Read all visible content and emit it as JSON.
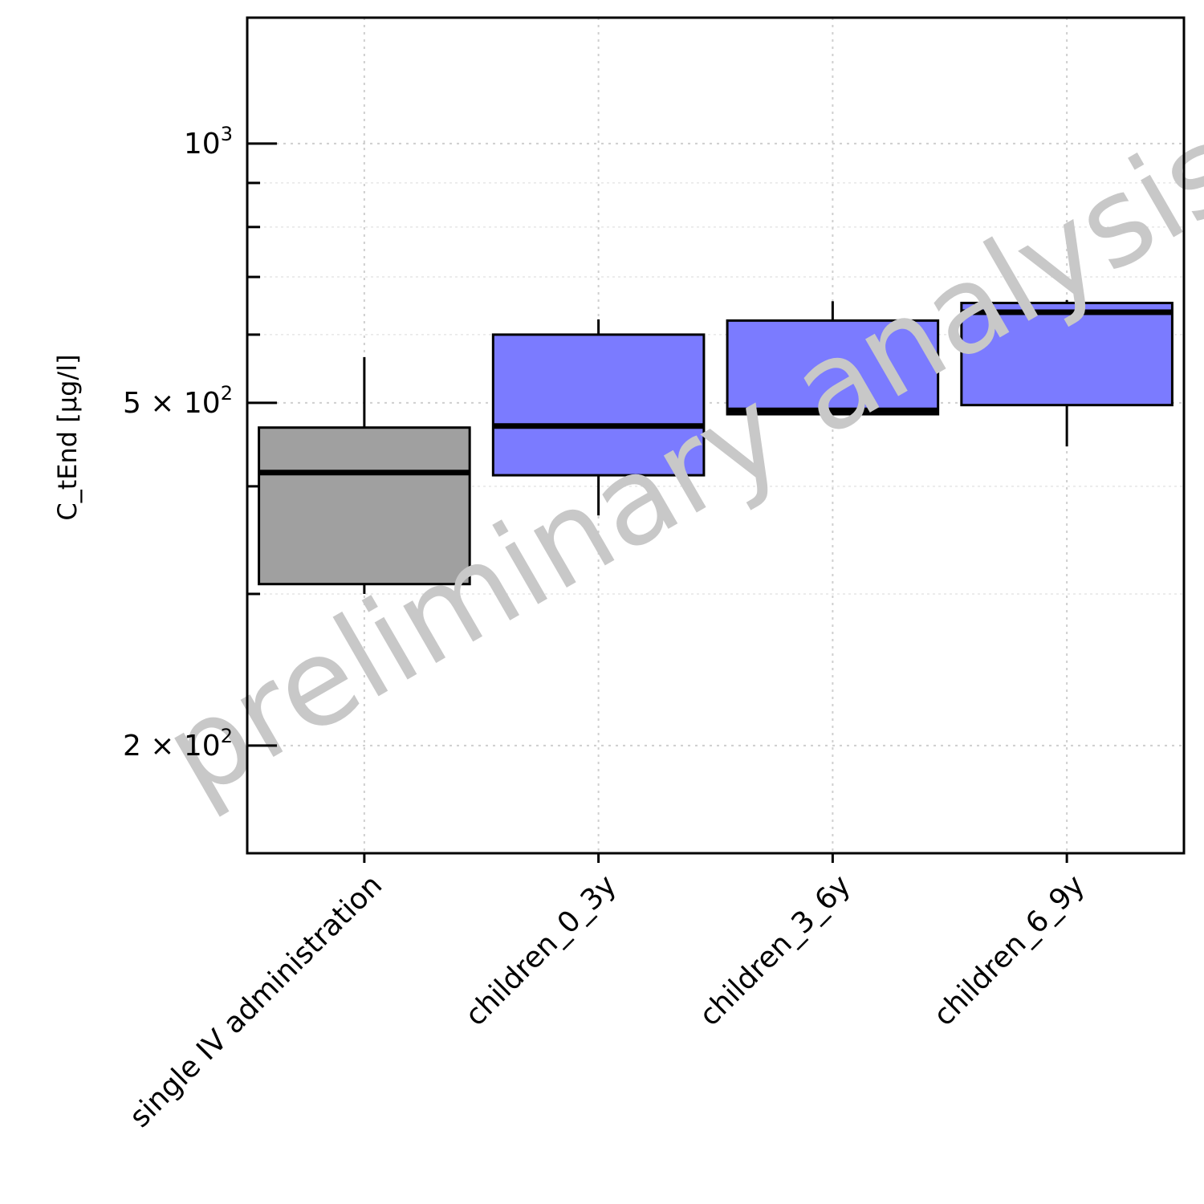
{
  "chart_data": {
    "type": "boxplot",
    "ylabel": "C_tEnd [µg/l]",
    "yscale": "log",
    "ylim": [
      150,
      1400
    ],
    "grid": true,
    "yticks": [
      {
        "value": 1000,
        "mantissa": "",
        "base": "10",
        "exponent": "3"
      },
      {
        "value": 500,
        "mantissa": "5",
        "base": "10",
        "exponent": "2"
      },
      {
        "value": 200,
        "mantissa": "2",
        "base": "10",
        "exponent": "2"
      }
    ],
    "minor_yticks": [
      300,
      400,
      600,
      700,
      800,
      900
    ],
    "categories": [
      "single IV administration",
      "children_0_3y",
      "children_3_6y",
      "children_6_9y"
    ],
    "boxes": [
      {
        "category": "single IV administration",
        "whisker_low": 300,
        "q1": 308,
        "median": 415,
        "q3": 468,
        "whisker_high": 565,
        "color": "#a0a0a0"
      },
      {
        "category": "children_0_3y",
        "whisker_low": 370,
        "q1": 412,
        "median": 470,
        "q3": 600,
        "whisker_high": 625,
        "color": "#7b7bff"
      },
      {
        "category": "children_3_6y",
        "whisker_low": 485,
        "q1": 485,
        "median": 490,
        "q3": 623,
        "whisker_high": 656,
        "color": "#7b7bff"
      },
      {
        "category": "children_6_9y",
        "whisker_low": 445,
        "q1": 497,
        "median": 637,
        "q3": 653,
        "whisker_high": 658,
        "color": "#7b7bff"
      }
    ],
    "watermark": "preliminary analysis"
  }
}
